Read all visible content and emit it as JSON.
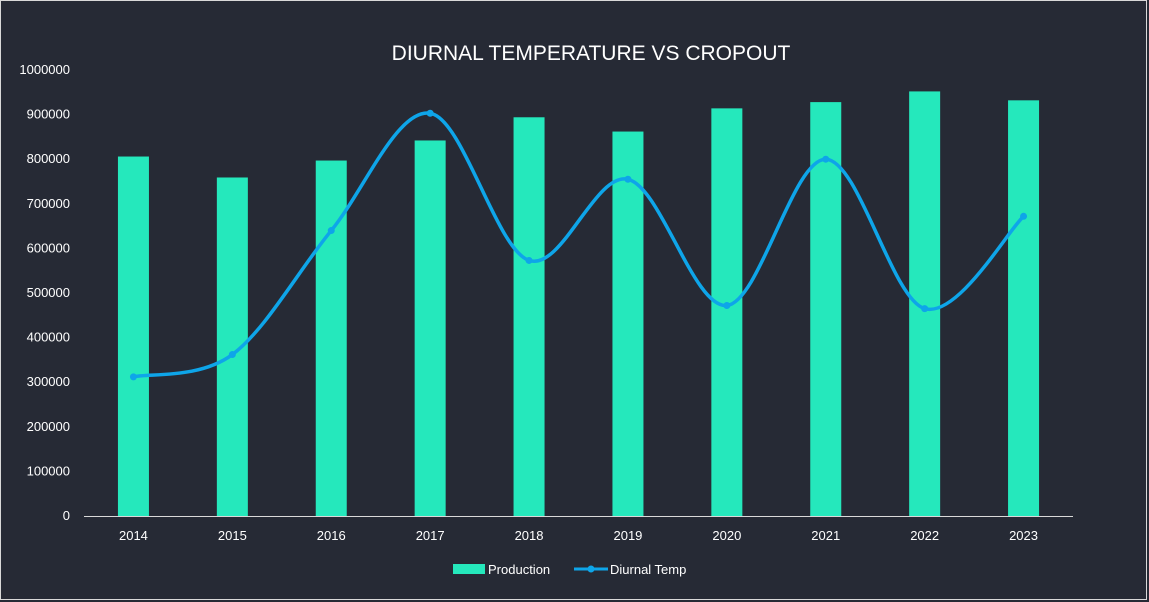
{
  "chart_data": {
    "type": "bar",
    "title": "DIURNAL TEMPERATURE VS CROPOUT",
    "xlabel": "",
    "ylabel": "",
    "categories": [
      "2014",
      "2015",
      "2016",
      "2017",
      "2018",
      "2019",
      "2020",
      "2021",
      "2022",
      "2023"
    ],
    "ylim": [
      0,
      1000000
    ],
    "yticks": [
      0,
      100000,
      200000,
      300000,
      400000,
      500000,
      600000,
      700000,
      800000,
      900000,
      1000000
    ],
    "ytick_labels": [
      "0",
      "100000",
      "200000",
      "300000",
      "400000",
      "500000",
      "600000",
      "700000",
      "800000",
      "900000",
      "1000000"
    ],
    "grid": false,
    "legend_position": "bottom",
    "series": [
      {
        "name": "Production",
        "type": "bar",
        "color": "#25e8bc",
        "values": [
          806000,
          759000,
          797000,
          842000,
          894000,
          862000,
          914000,
          928000,
          952000,
          932000
        ]
      },
      {
        "name": "Diurnal Temp",
        "type": "line",
        "smooth": true,
        "color": "#0ea5e9",
        "values": [
          312000,
          362000,
          640000,
          903000,
          573000,
          755000,
          472000,
          800000,
          465000,
          672000
        ]
      }
    ]
  }
}
